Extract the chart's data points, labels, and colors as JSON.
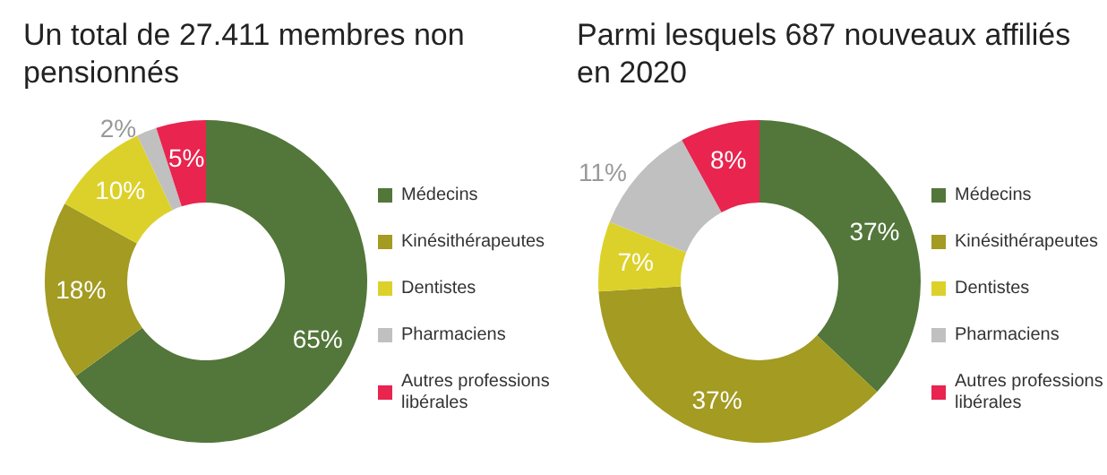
{
  "chart_data": [
    {
      "type": "donut",
      "title": "Un total de 27.411 membres non pensionnés",
      "categories": [
        "Médecins",
        "Kinésithérapeutes",
        "Dentistes",
        "Pharmaciens",
        "Autres professions libérales"
      ],
      "values": [
        65,
        18,
        10,
        2,
        5
      ],
      "value_labels": [
        "65%",
        "18%",
        "10%",
        "2%",
        "5%"
      ],
      "colors": [
        "#53763a",
        "#a39b22",
        "#dcd12a",
        "#c0c0c0",
        "#e8244f"
      ],
      "legend": "right"
    },
    {
      "type": "donut",
      "title": "Parmi lesquels 687 nouveaux affiliés en 2020",
      "categories": [
        "Médecins",
        "Kinésithérapeutes",
        "Dentistes",
        "Pharmaciens",
        "Autres professions libérales"
      ],
      "values": [
        37,
        37,
        7,
        11,
        8
      ],
      "value_labels": [
        "37%",
        "37%",
        "7%",
        "11%",
        "8%"
      ],
      "colors": [
        "#53763a",
        "#a39b22",
        "#dcd12a",
        "#c0c0c0",
        "#e8244f"
      ],
      "legend": "right"
    }
  ]
}
